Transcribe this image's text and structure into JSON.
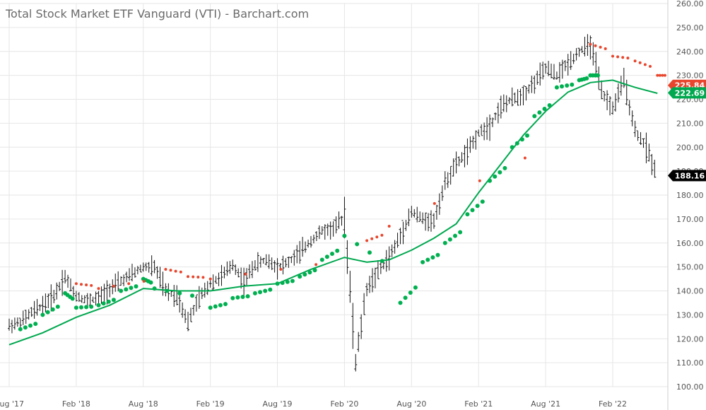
{
  "chart_data": {
    "type": "line",
    "title": "Total Stock Market ETF Vanguard (VTI) - Barchart.com",
    "xlabel": "",
    "ylabel": "",
    "ylim": [
      100,
      260
    ],
    "y_ticks": [
      "100.00",
      "110.00",
      "120.00",
      "130.00",
      "140.00",
      "150.00",
      "160.00",
      "170.00",
      "180.00",
      "190.00",
      "200.00",
      "210.00",
      "220.00",
      "230.00",
      "240.00",
      "250.00",
      "260.00"
    ],
    "x_ticks": [
      "Aug '17",
      "Feb '18",
      "Aug '18",
      "Feb '19",
      "Aug '19",
      "Feb '20",
      "Aug '20",
      "Feb '21",
      "Aug '21",
      "Feb '22"
    ],
    "grid": true,
    "price_series": {
      "color": "#000000",
      "points": [
        [
          "Aug '17",
          125.5
        ],
        [
          "Sep '17",
          127
        ],
        [
          "Oct '17",
          131
        ],
        [
          "Nov '17",
          134
        ],
        [
          "Dec '17",
          138
        ],
        [
          "Jan '18",
          146
        ],
        [
          "Feb '18",
          138
        ],
        [
          "Mar '18",
          136
        ],
        [
          "Apr '18",
          137
        ],
        [
          "May '18",
          141
        ],
        [
          "Jun '18",
          144
        ],
        [
          "Jul '18",
          147
        ],
        [
          "Aug '18",
          150
        ],
        [
          "Sep '18",
          150
        ],
        [
          "Oct '18",
          140
        ],
        [
          "Nov '18",
          138
        ],
        [
          "Dec '18",
          127
        ],
        [
          "Jan '19",
          137
        ],
        [
          "Feb '19",
          143
        ],
        [
          "Mar '19",
          146
        ],
        [
          "Apr '19",
          151
        ],
        [
          "May '19",
          144
        ],
        [
          "Jun '19",
          151
        ],
        [
          "Jul '19",
          153
        ],
        [
          "Aug '19",
          150
        ],
        [
          "Sep '19",
          152
        ],
        [
          "Oct '19",
          156
        ],
        [
          "Nov '19",
          161
        ],
        [
          "Dec '19",
          165
        ],
        [
          "Jan '20",
          166
        ],
        [
          "Feb '20",
          171
        ],
        [
          "Mar '20",
          110
        ],
        [
          "Apr '20",
          141
        ],
        [
          "May '20",
          148
        ],
        [
          "Jun '20",
          154
        ],
        [
          "Jul '20",
          163
        ],
        [
          "Aug '20",
          173
        ],
        [
          "Sep '20",
          170
        ],
        [
          "Oct '20",
          169
        ],
        [
          "Nov '20",
          185
        ],
        [
          "Dec '20",
          193
        ],
        [
          "Jan '21",
          198
        ],
        [
          "Feb '21",
          206
        ],
        [
          "Mar '21",
          209
        ],
        [
          "Apr '21",
          217
        ],
        [
          "May '21",
          220
        ],
        [
          "Jun '21",
          222
        ],
        [
          "Jul '21",
          227
        ],
        [
          "Aug '21",
          233
        ],
        [
          "Sep '21",
          230
        ],
        [
          "Oct '21",
          235
        ],
        [
          "Nov '21",
          240
        ],
        [
          "Dec '21",
          243
        ],
        [
          "Jan '22",
          223
        ],
        [
          "Feb '22",
          216
        ],
        [
          "Mar '22",
          228
        ],
        [
          "Apr '22",
          207
        ],
        [
          "May '22",
          200
        ],
        [
          "Jun '22",
          188
        ]
      ]
    },
    "series": [
      {
        "name": "",
        "color": "#00a84f",
        "points": [
          [
            "Aug '17",
            117.5
          ],
          [
            "Nov '17",
            122.5
          ],
          [
            "Feb '18",
            129
          ],
          [
            "May '18",
            134
          ],
          [
            "Aug '18",
            141
          ],
          [
            "Nov '18",
            140
          ],
          [
            "Feb '19",
            140
          ],
          [
            "May '19",
            142
          ],
          [
            "Aug '19",
            143
          ],
          [
            "Nov '19",
            149
          ],
          [
            "Feb '20",
            154
          ],
          [
            "Apr '20",
            152
          ],
          [
            "Jun '20",
            153
          ],
          [
            "Aug '20",
            157
          ],
          [
            "Oct '20",
            162
          ],
          [
            "Dec '20",
            168
          ],
          [
            "Feb '21",
            181
          ],
          [
            "Apr '21",
            193
          ],
          [
            "Jun '21",
            205
          ],
          [
            "Aug '21",
            215
          ],
          [
            "Oct '21",
            223
          ],
          [
            "Dec '21",
            227
          ],
          [
            "Feb '22",
            228
          ],
          [
            "Apr '22",
            225
          ],
          [
            "Jun '22",
            222.5
          ]
        ]
      }
    ],
    "sar": [
      {
        "color": "#00b050",
        "points": [
          [
            "Sep '17",
            124
          ],
          [
            "Nov '17",
            130
          ],
          [
            "Jan '18",
            139
          ],
          [
            "Feb '18",
            133
          ],
          [
            "Apr '18",
            134
          ],
          [
            "Jun '18",
            140
          ],
          [
            "Aug '18",
            145
          ],
          [
            "Sep '18",
            141
          ],
          [
            "Feb '19",
            133
          ],
          [
            "Apr '19",
            137
          ],
          [
            "Jun '19",
            139
          ],
          [
            "Aug '19",
            143
          ],
          [
            "Oct '19",
            146
          ],
          [
            "Dec '19",
            153
          ],
          [
            "Feb '20",
            163
          ],
          [
            "Jul '20",
            135
          ],
          [
            "Sep '20",
            152
          ],
          [
            "Nov '20",
            160
          ],
          [
            "Jan '21",
            172
          ],
          [
            "Mar '21",
            186
          ],
          [
            "May '21",
            200
          ],
          [
            "Jul '21",
            213
          ],
          [
            "Sep '21",
            225
          ],
          [
            "Nov '21",
            228
          ],
          [
            "Dec '21",
            230
          ]
        ]
      },
      {
        "color": "#e8452c",
        "points": [
          [
            "Feb '18",
            143
          ],
          [
            "Apr '18",
            141
          ],
          [
            "Oct '18",
            149
          ],
          [
            "Dec '18",
            146
          ],
          [
            "Feb '19",
            145
          ],
          [
            "Apr '20",
            161
          ],
          [
            "Jun '20",
            167
          ],
          [
            "Dec '21",
            243
          ],
          [
            "Feb '22",
            238
          ],
          [
            "Apr '22",
            236
          ],
          [
            "Jun '22",
            230
          ]
        ]
      }
    ],
    "last_price": "188.16",
    "ma_last": "222.69",
    "sar_last": "225.84"
  }
}
